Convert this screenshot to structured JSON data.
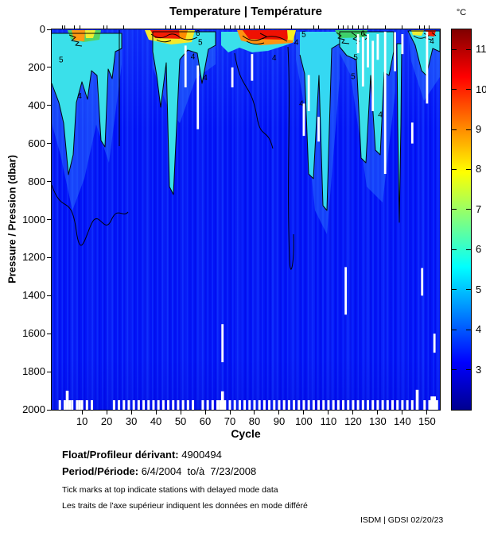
{
  "chart_data": {
    "type": "heatmap",
    "title": "Temperature | Température",
    "xlabel": "Cycle",
    "ylabel": "Pressure / Pression (dbar)",
    "x_ticks": [
      10,
      20,
      30,
      40,
      50,
      60,
      70,
      80,
      90,
      100,
      110,
      120,
      130,
      140,
      150
    ],
    "y_ticks": [
      0,
      200,
      400,
      600,
      800,
      1000,
      1200,
      1400,
      1600,
      1800,
      2000
    ],
    "x_range": [
      -2.3,
      155.2
    ],
    "y_range": [
      0,
      2000
    ],
    "y_inverted": true,
    "grid": false,
    "colorbar": {
      "unit": "°C",
      "min": 2.0,
      "max": 11.5,
      "ticks": [
        3,
        4,
        5,
        6,
        7,
        8,
        9,
        10,
        11
      ],
      "palette": [
        "#000090",
        "#0000ff",
        "#00ffff",
        "#ffff00",
        "#ff0000",
        "#800000"
      ],
      "position": "right"
    },
    "deep_water_temperature_c": 3.0,
    "contour_labels": [
      {
        "v": "5",
        "c": 1.5,
        "p": 160
      },
      {
        "v": "4",
        "c": 9,
        "p": 350
      },
      {
        "v": "6",
        "c": 57,
        "p": 20
      },
      {
        "v": "5",
        "c": 58,
        "p": 68
      },
      {
        "v": "4",
        "c": 55,
        "p": 145
      },
      {
        "v": "4",
        "c": 60,
        "p": 255
      },
      {
        "v": "5",
        "c": 100,
        "p": 28
      },
      {
        "v": "4",
        "c": 97,
        "p": 68
      },
      {
        "v": "4",
        "c": 88,
        "p": 150
      },
      {
        "v": "4",
        "c": 99,
        "p": 390
      },
      {
        "v": "5",
        "c": 121,
        "p": 148
      },
      {
        "v": "6",
        "c": 124,
        "p": 24
      },
      {
        "v": "5",
        "c": 120,
        "p": 248
      },
      {
        "v": "4",
        "c": 131,
        "p": 448
      },
      {
        "v": "4",
        "c": 152,
        "p": 62
      }
    ],
    "missing_data_gaps": [
      {
        "c": 52,
        "p1": 85,
        "p2": 305
      },
      {
        "c": 57,
        "p1": 190,
        "p2": 525
      },
      {
        "c": 71,
        "p1": 200,
        "p2": 305
      },
      {
        "c": 67,
        "p1": 1550,
        "p2": 1750
      },
      {
        "c": 79,
        "p1": 130,
        "p2": 270
      },
      {
        "c": 100,
        "p1": 390,
        "p2": 560
      },
      {
        "c": 102,
        "p1": 240,
        "p2": 430
      },
      {
        "c": 106,
        "p1": 460,
        "p2": 590
      },
      {
        "c": 117,
        "p1": 1250,
        "p2": 1500
      },
      {
        "c": 122,
        "p1": 25,
        "p2": 125
      },
      {
        "c": 124,
        "p1": 40,
        "p2": 300
      },
      {
        "c": 126,
        "p1": 25,
        "p2": 200
      },
      {
        "c": 128,
        "p1": 60,
        "p2": 430
      },
      {
        "c": 130,
        "p1": 25,
        "p2": 160
      },
      {
        "c": 133,
        "p1": 12,
        "p2": 760
      },
      {
        "c": 137,
        "p1": 15,
        "p2": 220
      },
      {
        "c": 140,
        "p1": 25,
        "p2": 130
      },
      {
        "c": 144,
        "p1": 490,
        "p2": 600
      },
      {
        "c": 148,
        "p1": 1255,
        "p2": 1400
      },
      {
        "c": 150,
        "p1": 12,
        "p2": 390
      },
      {
        "c": 153,
        "p1": 1600,
        "p2": 1700
      }
    ],
    "short_profiles_end_pressure": 1950,
    "short_profile_cycles": [
      1,
      3,
      5,
      6,
      8,
      9,
      10,
      12,
      14,
      23,
      25,
      27,
      29,
      31,
      33,
      35,
      37,
      39,
      41,
      43,
      45,
      47,
      49,
      51,
      53,
      55,
      59,
      61,
      63,
      65,
      66,
      68,
      70,
      72,
      74,
      76,
      78,
      80,
      82,
      84,
      86,
      88,
      90,
      92,
      94,
      96,
      98,
      100,
      102,
      104,
      106,
      108,
      110,
      112,
      114,
      116,
      118,
      120,
      122,
      124,
      126,
      128,
      130,
      132,
      134,
      136,
      138,
      140,
      142,
      144,
      149,
      151,
      152,
      153,
      154
    ],
    "deep_bottom_gaps": [
      {
        "c": 4,
        "p": 1900
      },
      {
        "c": 67,
        "p": 1903
      },
      {
        "c": 146,
        "p": 1895
      },
      {
        "c": 152,
        "p": 1930
      },
      {
        "c": 153,
        "p": 1930
      }
    ],
    "delayed_mode_tick_cycles": [
      2,
      3,
      7,
      9,
      19,
      20,
      27,
      44,
      46,
      48,
      50,
      52,
      55,
      68,
      70,
      72,
      74,
      76,
      78,
      80,
      82,
      84,
      95,
      104,
      106,
      114,
      116,
      118,
      120,
      122,
      124,
      126,
      133,
      140,
      147,
      149,
      151
    ]
  },
  "footer": {
    "float_label": "Float/Profileur dérivant:",
    "float_value": " 4900494",
    "period_label": "Period/Période:",
    "period_value": " 6/4/2004  to/à  7/23/2008",
    "note_en": "Tick marks at top indicate stations with delayed mode data",
    "note_fr": "Les traits de l'axe supérieur indiquent les données en mode différé"
  },
  "credit": "ISDM | GDSI 02/20/23"
}
